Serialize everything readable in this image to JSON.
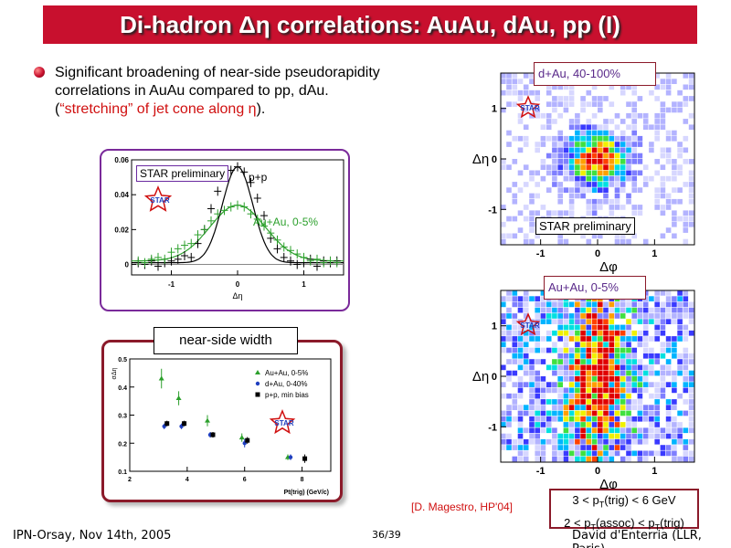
{
  "slide": {
    "title": "Di-hadron Δη correlations: AuAu, dAu, pp (I)",
    "bullet_line1": "Significant broadening of near-side pseudorapidity",
    "bullet_line2": "correlations in AuAu compared to pp, dAu.",
    "bullet_line3_open": "(",
    "bullet_line3_red": "“stretching” of jet cone along η",
    "bullet_line3_close": ").",
    "citation": "[D. Magestro, HP'04]",
    "cond_line1": "3 < pT(trig) < 6 GeV",
    "cond_line2": "2 < pT(assoc) < pT(trig)",
    "footer_left": "IPN-Orsay, Nov 14th, 2005",
    "footer_center": "36/39",
    "footer_right": "David d'Enterria (LLR, Paris)"
  },
  "labels": {
    "star_preliminary": "STAR preliminary",
    "star_logo": "STAR",
    "pp": "p+p",
    "auau": "Au+Au, 0-5%",
    "near_side_width": "near-side width",
    "dau_panel": "d+Au, 40-100%",
    "auau_panel": "Au+Au, 0-5%",
    "deta": "Δη",
    "dphi": "Δφ"
  },
  "colors": {
    "title_bg": "#c8102e",
    "frame_purple": "#7a2a9a",
    "frame_maroon": "#8b1a2a",
    "accent_red": "#d01010",
    "auau_green": "#2ca02c",
    "dau_blue": "#1f3fbf"
  },
  "chart_data": [
    {
      "type": "scatter",
      "title": "",
      "xlabel": "Δη",
      "ylabel": "",
      "xlim": [
        -1.6,
        1.6
      ],
      "ylim": [
        -0.006,
        0.06
      ],
      "xticks": [
        "-1",
        "0",
        "1"
      ],
      "yticks": [
        "0",
        "0.02",
        "0.04",
        "0.06"
      ],
      "series": [
        {
          "name": "p+p",
          "x": [
            -1.5,
            -1.4,
            -1.3,
            -1.2,
            -1.1,
            -1.0,
            -0.9,
            -0.8,
            -0.7,
            -0.6,
            -0.5,
            -0.4,
            -0.3,
            -0.2,
            -0.1,
            0.0,
            0.1,
            0.2,
            0.3,
            0.4,
            0.5,
            0.6,
            0.7,
            0.8,
            0.9,
            1.0,
            1.1,
            1.2,
            1.3,
            1.4,
            1.5
          ],
          "y": [
            0.001,
            0.0,
            0.002,
            -0.001,
            0.001,
            0.002,
            0.003,
            0.005,
            0.004,
            0.012,
            0.02,
            0.032,
            0.042,
            0.051,
            0.054,
            0.056,
            0.053,
            0.047,
            0.038,
            0.028,
            0.015,
            0.009,
            0.004,
            0.002,
            0.0,
            0.001,
            0.003,
            -0.001,
            0.002,
            0.001,
            0.002
          ]
        },
        {
          "name": "Au+Au, 0-5%",
          "x": [
            -1.5,
            -1.4,
            -1.3,
            -1.2,
            -1.1,
            -1.0,
            -0.9,
            -0.8,
            -0.7,
            -0.6,
            -0.5,
            -0.4,
            -0.3,
            -0.2,
            -0.1,
            0.0,
            0.1,
            0.2,
            0.3,
            0.4,
            0.5,
            0.6,
            0.7,
            0.8,
            0.9,
            1.0,
            1.1,
            1.2,
            1.3,
            1.4,
            1.5
          ],
          "y": [
            0.002,
            0.001,
            0.003,
            0.004,
            0.003,
            0.007,
            0.009,
            0.011,
            0.012,
            0.017,
            0.02,
            0.025,
            0.029,
            0.031,
            0.033,
            0.034,
            0.033,
            0.029,
            0.026,
            0.022,
            0.018,
            0.014,
            0.01,
            0.008,
            0.006,
            0.004,
            0.002,
            0.003,
            0.001,
            0.002,
            0.001
          ]
        }
      ]
    },
    {
      "type": "scatter",
      "title": "near-side width",
      "xlabel": "Pt(trig) (GeV/c)",
      "ylabel": "σΔη",
      "xlim": [
        2,
        9
      ],
      "ylim": [
        0.1,
        0.5
      ],
      "xticks": [
        "2",
        "4",
        "6",
        "8"
      ],
      "yticks": [
        "0.1",
        "0.2",
        "0.3",
        "0.4",
        "0.5"
      ],
      "series": [
        {
          "name": "Au+Au, 0-5%",
          "x": [
            3.2,
            3.8,
            4.8,
            6.0,
            7.6
          ],
          "y": [
            0.43,
            0.36,
            0.28,
            0.22,
            0.15
          ]
        },
        {
          "name": "d+Au, 0-40%",
          "x": [
            3.2,
            3.8,
            4.8,
            6.0,
            7.6
          ],
          "y": [
            0.26,
            0.26,
            0.23,
            0.2,
            0.15
          ]
        },
        {
          "name": "p+p, min bias",
          "x": [
            3.2,
            3.8,
            4.8,
            6.0,
            8.0
          ],
          "y": [
            0.27,
            0.27,
            0.23,
            0.21,
            0.145
          ]
        }
      ]
    },
    {
      "type": "heatmap",
      "title": "d+Au, 40-100%",
      "xlabel": "Δφ",
      "ylabel": "Δη",
      "xlim": [
        -1.7,
        1.7
      ],
      "ylim": [
        -1.7,
        1.7
      ],
      "xticks": [
        "-1",
        "0",
        "1"
      ],
      "yticks": [
        "-1",
        "0",
        "1"
      ],
      "peak": [
        0,
        0
      ],
      "width_phi": 0.35,
      "width_eta": 0.35
    },
    {
      "type": "heatmap",
      "title": "Au+Au, 0-5%",
      "xlabel": "Δφ",
      "ylabel": "Δη",
      "xlim": [
        -1.7,
        1.7
      ],
      "ylim": [
        -1.7,
        1.7
      ],
      "xticks": [
        "-1",
        "0",
        "1"
      ],
      "yticks": [
        "-1",
        "0",
        "1"
      ],
      "peak": [
        0,
        0
      ],
      "width_phi": 0.4,
      "width_eta": 1.3
    }
  ]
}
